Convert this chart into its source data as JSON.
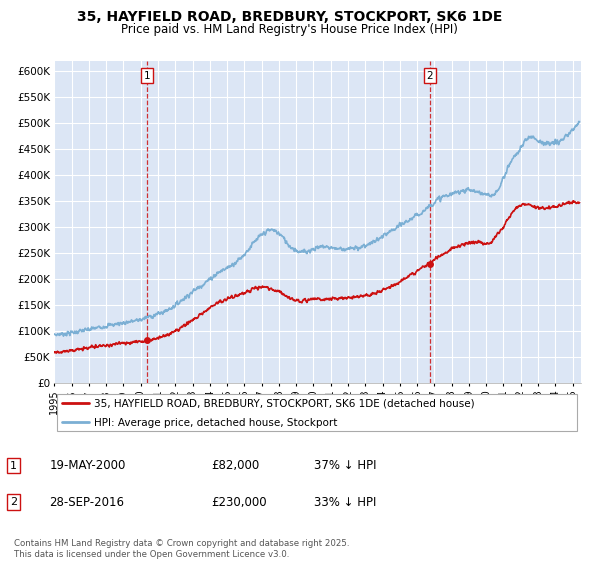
{
  "title_line1": "35, HAYFIELD ROAD, BREDBURY, STOCKPORT, SK6 1DE",
  "title_line2": "Price paid vs. HM Land Registry's House Price Index (HPI)",
  "plot_bg_color": "#dce6f5",
  "hpi_color": "#7bafd4",
  "price_color": "#cc1111",
  "marker_color": "#cc1111",
  "ylim": [
    0,
    620000
  ],
  "yticks": [
    0,
    50000,
    100000,
    150000,
    200000,
    250000,
    300000,
    350000,
    400000,
    450000,
    500000,
    550000,
    600000
  ],
  "ytick_labels": [
    "£0",
    "£50K",
    "£100K",
    "£150K",
    "£200K",
    "£250K",
    "£300K",
    "£350K",
    "£400K",
    "£450K",
    "£500K",
    "£550K",
    "£600K"
  ],
  "purchase1_x": 2000.38,
  "purchase1_y": 82000,
  "purchase1_label": "1",
  "purchase1_date": "19-MAY-2000",
  "purchase1_price": "£82,000",
  "purchase1_hpi": "37% ↓ HPI",
  "purchase2_x": 2016.75,
  "purchase2_y": 230000,
  "purchase2_label": "2",
  "purchase2_date": "28-SEP-2016",
  "purchase2_price": "£230,000",
  "purchase2_hpi": "33% ↓ HPI",
  "legend_line1": "35, HAYFIELD ROAD, BREDBURY, STOCKPORT, SK6 1DE (detached house)",
  "legend_line2": "HPI: Average price, detached house, Stockport",
  "footnote": "Contains HM Land Registry data © Crown copyright and database right 2025.\nThis data is licensed under the Open Government Licence v3.0.",
  "xmin": 1995.0,
  "xmax": 2025.5,
  "key_years_hpi": [
    1995.0,
    1995.5,
    1996.0,
    1996.5,
    1997.0,
    1997.5,
    1998.0,
    1998.5,
    1999.0,
    1999.5,
    2000.0,
    2000.5,
    2001.0,
    2001.5,
    2002.0,
    2002.5,
    2003.0,
    2003.5,
    2004.0,
    2004.5,
    2005.0,
    2005.5,
    2006.0,
    2006.5,
    2007.0,
    2007.3,
    2007.6,
    2008.0,
    2008.3,
    2008.6,
    2009.0,
    2009.3,
    2009.6,
    2010.0,
    2010.3,
    2010.6,
    2011.0,
    2011.5,
    2012.0,
    2012.5,
    2013.0,
    2013.5,
    2014.0,
    2014.5,
    2015.0,
    2015.5,
    2016.0,
    2016.3,
    2016.6,
    2017.0,
    2017.3,
    2017.6,
    2018.0,
    2018.5,
    2019.0,
    2019.5,
    2020.0,
    2020.3,
    2020.6,
    2021.0,
    2021.3,
    2021.6,
    2022.0,
    2022.3,
    2022.6,
    2023.0,
    2023.3,
    2023.6,
    2024.0,
    2024.5,
    2025.0,
    2025.3
  ],
  "key_vals_hpi": [
    93000,
    95000,
    97000,
    100000,
    103000,
    107000,
    110000,
    113000,
    116000,
    119000,
    122000,
    128000,
    133000,
    140000,
    150000,
    163000,
    176000,
    188000,
    200000,
    213000,
    222000,
    233000,
    248000,
    268000,
    285000,
    292000,
    295000,
    288000,
    278000,
    265000,
    256000,
    252000,
    254000,
    258000,
    262000,
    263000,
    261000,
    259000,
    258000,
    260000,
    265000,
    272000,
    282000,
    292000,
    303000,
    313000,
    323000,
    330000,
    338000,
    348000,
    355000,
    360000,
    363000,
    370000,
    372000,
    368000,
    362000,
    360000,
    368000,
    395000,
    418000,
    435000,
    452000,
    468000,
    475000,
    468000,
    462000,
    460000,
    463000,
    470000,
    488000,
    498000
  ],
  "key_years_price": [
    1995.0,
    1995.5,
    1996.0,
    1996.5,
    1997.0,
    1997.5,
    1998.0,
    1998.5,
    1999.0,
    1999.5,
    2000.0,
    2000.38,
    2000.7,
    2001.0,
    2001.5,
    2002.0,
    2002.5,
    2003.0,
    2003.5,
    2004.0,
    2004.5,
    2005.0,
    2005.3,
    2005.6,
    2006.0,
    2006.3,
    2006.6,
    2007.0,
    2007.3,
    2007.6,
    2008.0,
    2008.3,
    2008.6,
    2009.0,
    2009.3,
    2009.6,
    2010.0,
    2010.3,
    2010.6,
    2011.0,
    2011.5,
    2012.0,
    2012.5,
    2013.0,
    2013.5,
    2014.0,
    2014.5,
    2015.0,
    2015.5,
    2016.0,
    2016.5,
    2016.75,
    2017.0,
    2017.5,
    2018.0,
    2018.5,
    2019.0,
    2019.5,
    2020.0,
    2020.3,
    2020.6,
    2021.0,
    2021.3,
    2021.6,
    2022.0,
    2022.3,
    2022.6,
    2023.0,
    2023.3,
    2023.6,
    2024.0,
    2024.5,
    2025.0,
    2025.3
  ],
  "key_vals_price": [
    60000,
    61000,
    63000,
    65000,
    68000,
    71000,
    73000,
    75000,
    77000,
    79000,
    81000,
    82000,
    84000,
    87000,
    93000,
    100000,
    110000,
    122000,
    133000,
    145000,
    155000,
    162000,
    166000,
    170000,
    174000,
    178000,
    182000,
    185000,
    183000,
    180000,
    176000,
    170000,
    164000,
    160000,
    158000,
    159000,
    161000,
    162000,
    161000,
    162000,
    163000,
    164000,
    166000,
    168000,
    172000,
    178000,
    186000,
    195000,
    205000,
    215000,
    226000,
    230000,
    238000,
    248000,
    258000,
    265000,
    270000,
    272000,
    268000,
    272000,
    285000,
    300000,
    318000,
    332000,
    342000,
    345000,
    342000,
    338000,
    337000,
    338000,
    340000,
    345000,
    348000,
    348000
  ]
}
